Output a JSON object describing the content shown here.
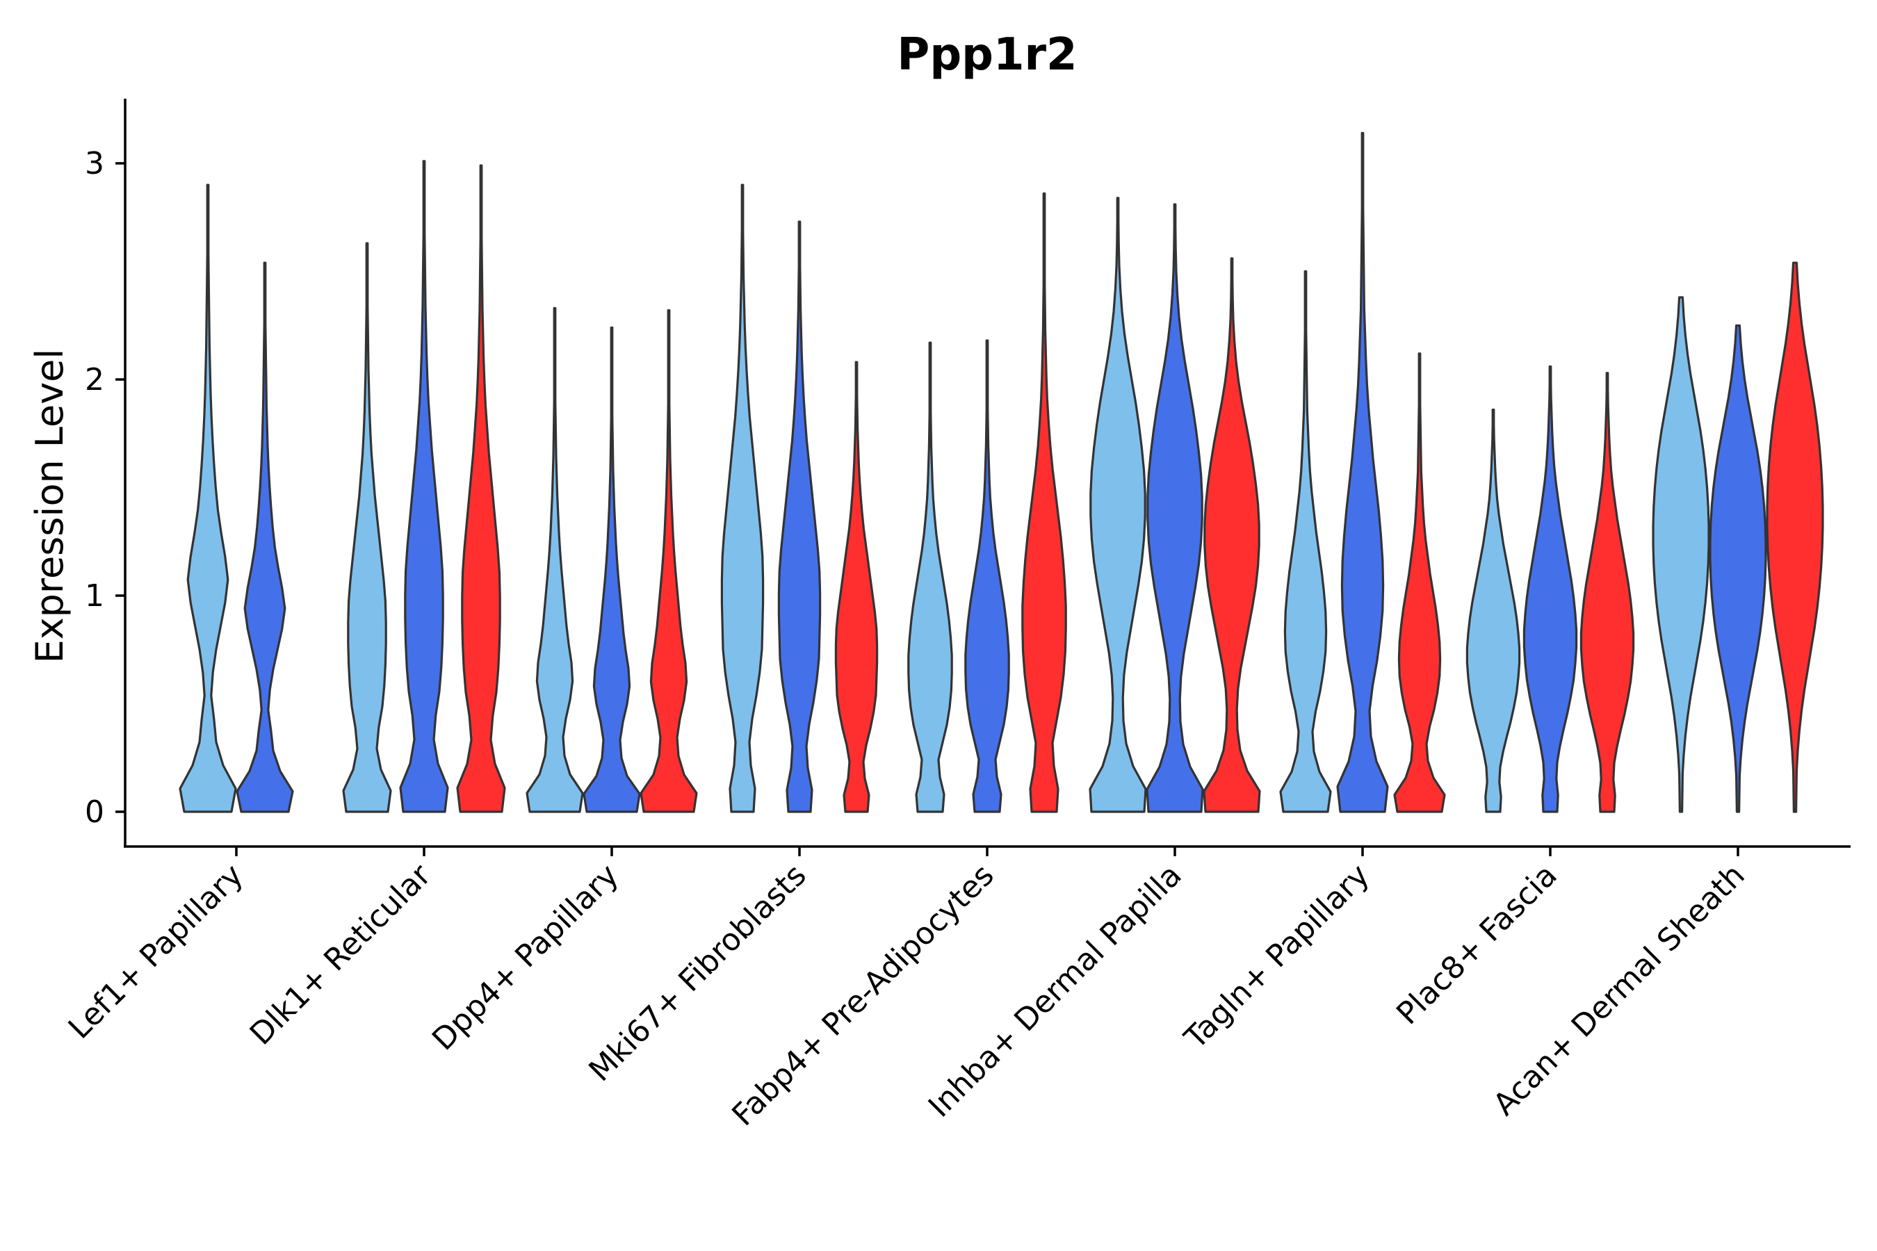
{
  "chart_data": {
    "type": "violin",
    "title": "Ppp1r2",
    "xlabel": "",
    "ylabel": "Expression Level",
    "ylim": [
      -0.16,
      3.3
    ],
    "yticks": [
      0,
      1,
      2,
      3
    ],
    "grid": false,
    "groups": [
      {
        "name": "Lef1+ Papillary",
        "violins": [
          {
            "color": "#7FBFEC",
            "max": 2.9,
            "density": [
              0.85,
              1.0,
              0.55,
              0.3,
              0.22,
              0.12,
              0.18,
              0.3,
              0.46,
              0.62,
              0.72,
              0.62,
              0.48,
              0.36,
              0.28,
              0.22,
              0.17,
              0.13,
              0.1,
              0.08,
              0.06,
              0.05,
              0.04,
              0.03,
              0.02,
              0.015,
              0.012,
              0.01
            ]
          },
          {
            "color": "#4470EA",
            "max": 2.54,
            "density": [
              0.85,
              1.0,
              0.55,
              0.3,
              0.22,
              0.12,
              0.18,
              0.3,
              0.46,
              0.62,
              0.72,
              0.62,
              0.48,
              0.36,
              0.28,
              0.22,
              0.17,
              0.13,
              0.1,
              0.08,
              0.06,
              0.05,
              0.04,
              0.03,
              0.02,
              0.015,
              0.012,
              0.01
            ]
          }
        ]
      },
      {
        "name": "Dlk1+ Reticular",
        "violins": [
          {
            "color": "#7FBFEC",
            "max": 2.63,
            "density": [
              0.75,
              0.85,
              0.5,
              0.35,
              0.42,
              0.55,
              0.62,
              0.66,
              0.68,
              0.68,
              0.66,
              0.6,
              0.52,
              0.44,
              0.36,
              0.28,
              0.22,
              0.16,
              0.12,
              0.09,
              0.07,
              0.05,
              0.04,
              0.03,
              0.02,
              0.015,
              0.012,
              0.01
            ]
          },
          {
            "color": "#4470EA",
            "max": 3.01,
            "density": [
              0.75,
              0.85,
              0.5,
              0.35,
              0.42,
              0.55,
              0.62,
              0.66,
              0.68,
              0.68,
              0.66,
              0.6,
              0.52,
              0.44,
              0.36,
              0.28,
              0.22,
              0.16,
              0.12,
              0.09,
              0.07,
              0.05,
              0.04,
              0.03,
              0.02,
              0.015,
              0.012,
              0.01
            ]
          },
          {
            "color": "#FF2F2F",
            "max": 2.99,
            "density": [
              0.75,
              0.85,
              0.5,
              0.35,
              0.42,
              0.55,
              0.62,
              0.66,
              0.68,
              0.68,
              0.66,
              0.6,
              0.52,
              0.44,
              0.36,
              0.28,
              0.22,
              0.16,
              0.12,
              0.09,
              0.07,
              0.05,
              0.04,
              0.03,
              0.02,
              0.015,
              0.012,
              0.01
            ]
          }
        ]
      },
      {
        "name": "Dpp4+ Papillary",
        "violins": [
          {
            "color": "#7FBFEC",
            "max": 2.33,
            "density": [
              0.9,
              1.0,
              0.55,
              0.35,
              0.3,
              0.4,
              0.55,
              0.64,
              0.6,
              0.5,
              0.42,
              0.36,
              0.3,
              0.24,
              0.19,
              0.15,
              0.12,
              0.09,
              0.07,
              0.05,
              0.04,
              0.03,
              0.02,
              0.015,
              0.012,
              0.01,
              0.01,
              0.01
            ]
          },
          {
            "color": "#4470EA",
            "max": 2.24,
            "density": [
              0.9,
              1.0,
              0.55,
              0.35,
              0.3,
              0.4,
              0.55,
              0.64,
              0.6,
              0.5,
              0.42,
              0.36,
              0.3,
              0.24,
              0.19,
              0.15,
              0.12,
              0.09,
              0.07,
              0.05,
              0.04,
              0.03,
              0.02,
              0.015,
              0.012,
              0.01,
              0.01,
              0.01
            ]
          },
          {
            "color": "#FF2F2F",
            "max": 2.32,
            "density": [
              0.9,
              1.0,
              0.55,
              0.35,
              0.3,
              0.4,
              0.55,
              0.64,
              0.6,
              0.5,
              0.42,
              0.36,
              0.3,
              0.24,
              0.19,
              0.15,
              0.12,
              0.09,
              0.07,
              0.05,
              0.04,
              0.03,
              0.02,
              0.015,
              0.012,
              0.01,
              0.01,
              0.01
            ]
          }
        ]
      },
      {
        "name": "Mki67+ Fibroblasts",
        "violins": [
          {
            "color": "#7FBFEC",
            "max": 2.9,
            "density": [
              0.4,
              0.45,
              0.3,
              0.25,
              0.35,
              0.5,
              0.62,
              0.7,
              0.72,
              0.74,
              0.74,
              0.72,
              0.66,
              0.58,
              0.5,
              0.42,
              0.34,
              0.26,
              0.2,
              0.15,
              0.11,
              0.08,
              0.06,
              0.04,
              0.03,
              0.02,
              0.015,
              0.01
            ]
          },
          {
            "color": "#4470EA",
            "max": 2.73,
            "density": [
              0.4,
              0.45,
              0.3,
              0.25,
              0.35,
              0.5,
              0.62,
              0.7,
              0.72,
              0.74,
              0.74,
              0.72,
              0.66,
              0.58,
              0.5,
              0.42,
              0.34,
              0.26,
              0.2,
              0.15,
              0.11,
              0.08,
              0.06,
              0.04,
              0.03,
              0.02,
              0.015,
              0.01
            ]
          },
          {
            "color": "#FF2F2F",
            "max": 2.08,
            "density": [
              0.4,
              0.45,
              0.3,
              0.25,
              0.35,
              0.5,
              0.62,
              0.7,
              0.72,
              0.74,
              0.74,
              0.72,
              0.66,
              0.58,
              0.5,
              0.42,
              0.34,
              0.26,
              0.2,
              0.15,
              0.11,
              0.08,
              0.06,
              0.04,
              0.03,
              0.02,
              0.015,
              0.01
            ]
          }
        ]
      },
      {
        "name": "Fabp4+ Pre-Adipocytes",
        "violins": [
          {
            "color": "#7FBFEC",
            "max": 2.17,
            "density": [
              0.45,
              0.5,
              0.35,
              0.3,
              0.45,
              0.6,
              0.7,
              0.76,
              0.78,
              0.78,
              0.74,
              0.68,
              0.6,
              0.5,
              0.4,
              0.3,
              0.22,
              0.16,
              0.11,
              0.08,
              0.06,
              0.04,
              0.03,
              0.02,
              0.015,
              0.01,
              0.01,
              0.01
            ]
          },
          {
            "color": "#4470EA",
            "max": 2.18,
            "density": [
              0.45,
              0.5,
              0.35,
              0.3,
              0.45,
              0.6,
              0.7,
              0.76,
              0.78,
              0.78,
              0.74,
              0.68,
              0.6,
              0.5,
              0.4,
              0.3,
              0.22,
              0.16,
              0.11,
              0.08,
              0.06,
              0.04,
              0.03,
              0.02,
              0.015,
              0.01,
              0.01,
              0.01
            ]
          },
          {
            "color": "#FF2F2F",
            "max": 2.86,
            "density": [
              0.45,
              0.5,
              0.35,
              0.3,
              0.45,
              0.6,
              0.7,
              0.76,
              0.78,
              0.78,
              0.74,
              0.68,
              0.6,
              0.5,
              0.4,
              0.3,
              0.22,
              0.16,
              0.11,
              0.08,
              0.06,
              0.04,
              0.03,
              0.02,
              0.015,
              0.01,
              0.01,
              0.01
            ]
          }
        ]
      },
      {
        "name": "Inhba+ Dermal Papilla",
        "violins": [
          {
            "color": "#7FBFEC",
            "max": 2.84,
            "density": [
              0.95,
              1.0,
              0.55,
              0.3,
              0.2,
              0.18,
              0.22,
              0.32,
              0.46,
              0.6,
              0.74,
              0.86,
              0.94,
              0.98,
              0.98,
              0.94,
              0.86,
              0.76,
              0.64,
              0.5,
              0.36,
              0.24,
              0.15,
              0.09,
              0.05,
              0.03,
              0.02,
              0.01
            ]
          },
          {
            "color": "#4470EA",
            "max": 2.81,
            "density": [
              0.95,
              1.0,
              0.55,
              0.3,
              0.2,
              0.18,
              0.22,
              0.32,
              0.46,
              0.6,
              0.74,
              0.86,
              0.94,
              0.98,
              0.98,
              0.94,
              0.86,
              0.76,
              0.64,
              0.5,
              0.36,
              0.24,
              0.15,
              0.09,
              0.05,
              0.03,
              0.02,
              0.01
            ]
          },
          {
            "color": "#FF2F2F",
            "max": 2.56,
            "density": [
              0.95,
              1.0,
              0.55,
              0.3,
              0.2,
              0.18,
              0.22,
              0.32,
              0.46,
              0.6,
              0.74,
              0.86,
              0.94,
              0.98,
              0.98,
              0.94,
              0.86,
              0.76,
              0.64,
              0.5,
              0.36,
              0.24,
              0.15,
              0.09,
              0.05,
              0.03,
              0.02,
              0.01
            ]
          }
        ]
      },
      {
        "name": "Tagln+ Papillary",
        "violins": [
          {
            "color": "#7FBFEC",
            "max": 2.5,
            "density": [
              0.8,
              0.9,
              0.5,
              0.3,
              0.25,
              0.36,
              0.52,
              0.64,
              0.72,
              0.74,
              0.72,
              0.66,
              0.58,
              0.48,
              0.38,
              0.3,
              0.22,
              0.16,
              0.12,
              0.09,
              0.06,
              0.05,
              0.04,
              0.03,
              0.02,
              0.015,
              0.012,
              0.01
            ]
          },
          {
            "color": "#4470EA",
            "max": 3.14,
            "density": [
              0.8,
              0.9,
              0.5,
              0.3,
              0.25,
              0.36,
              0.52,
              0.64,
              0.72,
              0.74,
              0.72,
              0.66,
              0.58,
              0.48,
              0.38,
              0.3,
              0.22,
              0.16,
              0.12,
              0.09,
              0.06,
              0.05,
              0.04,
              0.03,
              0.02,
              0.015,
              0.012,
              0.01
            ]
          },
          {
            "color": "#FF2F2F",
            "max": 2.12,
            "density": [
              0.8,
              0.9,
              0.5,
              0.3,
              0.25,
              0.36,
              0.52,
              0.64,
              0.72,
              0.74,
              0.72,
              0.66,
              0.58,
              0.48,
              0.38,
              0.3,
              0.22,
              0.16,
              0.12,
              0.09,
              0.06,
              0.05,
              0.04,
              0.03,
              0.02,
              0.015,
              0.012,
              0.01
            ]
          }
        ]
      },
      {
        "name": "Plac8+ Fascia",
        "violins": [
          {
            "color": "#7FBFEC",
            "max": 1.86,
            "density": [
              0.25,
              0.28,
              0.22,
              0.25,
              0.35,
              0.48,
              0.62,
              0.74,
              0.84,
              0.9,
              0.94,
              0.94,
              0.9,
              0.84,
              0.76,
              0.66,
              0.56,
              0.46,
              0.36,
              0.28,
              0.2,
              0.14,
              0.1,
              0.07,
              0.05,
              0.03,
              0.02,
              0.01
            ]
          },
          {
            "color": "#4470EA",
            "max": 2.06,
            "density": [
              0.25,
              0.28,
              0.22,
              0.25,
              0.35,
              0.48,
              0.62,
              0.74,
              0.84,
              0.9,
              0.94,
              0.94,
              0.9,
              0.84,
              0.76,
              0.66,
              0.56,
              0.46,
              0.36,
              0.28,
              0.2,
              0.14,
              0.1,
              0.07,
              0.05,
              0.03,
              0.02,
              0.01
            ]
          },
          {
            "color": "#FF2F2F",
            "max": 2.03,
            "density": [
              0.25,
              0.28,
              0.22,
              0.25,
              0.35,
              0.48,
              0.62,
              0.74,
              0.84,
              0.9,
              0.94,
              0.94,
              0.9,
              0.84,
              0.76,
              0.66,
              0.56,
              0.46,
              0.36,
              0.28,
              0.2,
              0.14,
              0.1,
              0.07,
              0.05,
              0.03,
              0.02,
              0.01
            ]
          }
        ]
      },
      {
        "name": "Acan+ Dermal Sheath",
        "violins": [
          {
            "color": "#7FBFEC",
            "max": 2.38,
            "density": [
              0.04,
              0.05,
              0.06,
              0.1,
              0.16,
              0.24,
              0.34,
              0.46,
              0.58,
              0.7,
              0.8,
              0.88,
              0.94,
              0.98,
              1.0,
              1.0,
              0.98,
              0.94,
              0.88,
              0.8,
              0.7,
              0.58,
              0.46,
              0.34,
              0.24,
              0.16,
              0.1,
              0.06
            ]
          },
          {
            "color": "#4470EA",
            "max": 2.25,
            "density": [
              0.04,
              0.05,
              0.06,
              0.1,
              0.16,
              0.24,
              0.34,
              0.46,
              0.58,
              0.7,
              0.8,
              0.88,
              0.94,
              0.98,
              1.0,
              1.0,
              0.98,
              0.94,
              0.88,
              0.8,
              0.7,
              0.58,
              0.46,
              0.34,
              0.24,
              0.16,
              0.1,
              0.06
            ]
          },
          {
            "color": "#FF2F2F",
            "max": 2.54,
            "density": [
              0.04,
              0.05,
              0.06,
              0.1,
              0.16,
              0.24,
              0.34,
              0.46,
              0.58,
              0.7,
              0.8,
              0.88,
              0.94,
              0.98,
              1.0,
              1.0,
              0.98,
              0.94,
              0.88,
              0.8,
              0.7,
              0.58,
              0.46,
              0.34,
              0.24,
              0.16,
              0.1,
              0.06
            ]
          }
        ]
      }
    ]
  }
}
